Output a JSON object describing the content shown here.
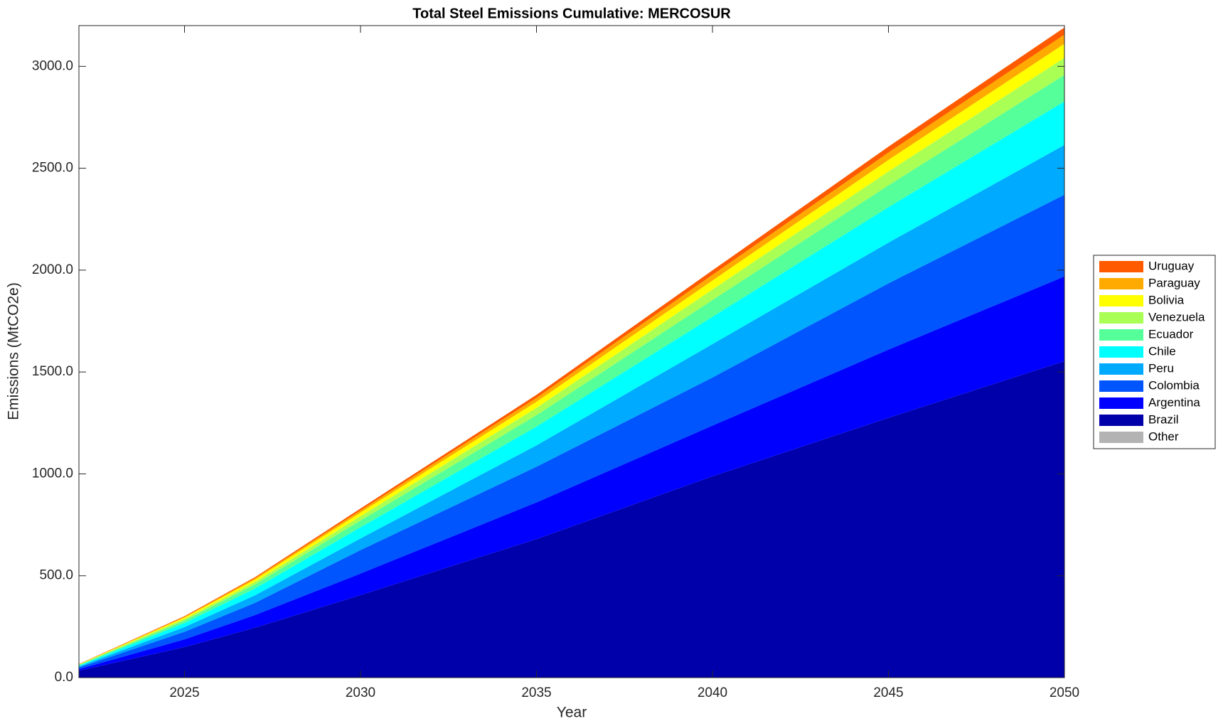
{
  "chart_data": {
    "type": "stacked-area",
    "title": "Total Steel Emissions Cumulative: MERCOSUR",
    "x_label": "Year",
    "y_label": "Emissions (MtCO2e)",
    "x": [
      2022,
      2025,
      2027,
      2030,
      2035,
      2040,
      2045,
      2050
    ],
    "xlim": [
      2022,
      2050
    ],
    "xticks": [
      2025,
      2030,
      2035,
      2040,
      2045,
      2050
    ],
    "ylim": [
      0,
      3200
    ],
    "yticks": [
      {
        "value": 0,
        "label": "0.0"
      },
      {
        "value": 500,
        "label": "500.0"
      },
      {
        "value": 1000,
        "label": "1000.0"
      },
      {
        "value": 1500,
        "label": "1500.0"
      },
      {
        "value": 2000,
        "label": "2000.0"
      },
      {
        "value": 2500,
        "label": "2500.0"
      },
      {
        "value": 3000,
        "label": "3000.0"
      }
    ],
    "grid": false,
    "legend": "right",
    "series": [
      {
        "name": "Other",
        "color": "#b3b3b3",
        "values": [
          0,
          0,
          0,
          0,
          0,
          0,
          0,
          0
        ]
      },
      {
        "name": "Brazil",
        "color": "#0000aa",
        "values": [
          34,
          150,
          245,
          405,
          680,
          988,
          1275,
          1553
        ]
      },
      {
        "name": "Argentina",
        "color": "#0000ff",
        "values": [
          8,
          38,
          62,
          106,
          180,
          249,
          335,
          416
        ]
      },
      {
        "name": "Colombia",
        "color": "#0055ff",
        "values": [
          8,
          37,
          60,
          115,
          175,
          236,
          325,
          401
        ]
      },
      {
        "name": "Peru",
        "color": "#00aaff",
        "values": [
          5,
          23,
          37,
          57,
          105,
          164,
          200,
          244
        ]
      },
      {
        "name": "Chile",
        "color": "#00ffff",
        "values": [
          4,
          20,
          33,
          55,
          92,
          134,
          174,
          214
        ]
      },
      {
        "name": "Ecuador",
        "color": "#55ff99",
        "values": [
          3,
          12,
          20,
          33,
          56,
          82,
          107,
          130
        ]
      },
      {
        "name": "Venezuela",
        "color": "#aaff55",
        "values": [
          2,
          8,
          13,
          21,
          36,
          52,
          68,
          84
        ]
      },
      {
        "name": "Bolivia",
        "color": "#ffff00",
        "values": [
          1,
          7,
          11,
          18,
          30,
          44,
          57,
          69
        ]
      },
      {
        "name": "Paraguay",
        "color": "#ffaa00",
        "values": [
          1,
          4,
          7,
          11,
          19,
          28,
          36,
          45
        ]
      },
      {
        "name": "Uruguay",
        "color": "#ff5a00",
        "values": [
          1,
          3,
          5,
          9,
          15,
          22,
          29,
          35
        ]
      }
    ]
  }
}
